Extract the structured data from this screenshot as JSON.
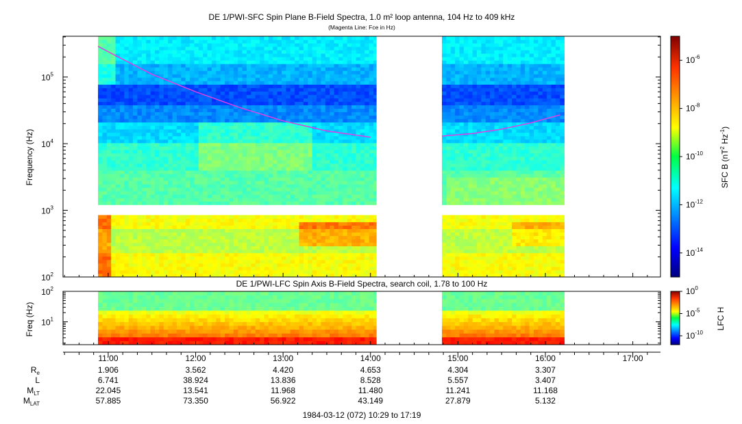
{
  "chart_data": [
    {
      "type": "heatmap",
      "title": "DE 1/PWI-SFC  Spin Plane B-Field Spectra, 1.0 m² loop antenna, 104 Hz to 409 kHz",
      "subtitle": "(Magenta Line: Fce in Hz)",
      "ylabel": "Frequency (Hz)",
      "yscale": "log",
      "ylim": [
        100,
        409000
      ],
      "yticks": [
        {
          "value": 100,
          "mant": "10",
          "exp": "2"
        },
        {
          "value": 1000,
          "mant": "10",
          "exp": "3"
        },
        {
          "value": 10000,
          "mant": "10",
          "exp": "4"
        },
        {
          "value": 100000,
          "mant": "10",
          "exp": "5"
        }
      ],
      "data_intervals": [
        [
          "10:53",
          "14:04"
        ],
        [
          "14:49",
          "16:13"
        ]
      ],
      "band_gap_hz": [
        950,
        1120
      ],
      "fce_series": {
        "name": "Fce",
        "color": "#e040e0",
        "segments": [
          {
            "t": [
              "10:53",
              "11:05",
              "11:30",
              "12:00",
              "12:30",
              "13:00",
              "13:30",
              "14:00"
            ],
            "f": [
              290000,
              210000,
              110000,
              60000,
              35000,
              22000,
              15500,
              12500
            ]
          },
          {
            "t": [
              "14:49",
              "15:10",
              "15:30",
              "15:50",
              "16:10"
            ],
            "f": [
              13000,
              14200,
              16500,
              20500,
              27000
            ]
          }
        ]
      },
      "colorbar": {
        "label_main": "SFC B (nT",
        "label_exp1": "2",
        "label_mid": " Hz",
        "label_exp2": "-1",
        "label_end": ")",
        "range_log10": [
          -15,
          -5
        ],
        "ticks": [
          {
            "value": -6,
            "mant": "10",
            "exp": "-6"
          },
          {
            "value": -8,
            "mant": "10",
            "exp": "-8"
          },
          {
            "value": -10,
            "mant": "10",
            "exp": "-10"
          },
          {
            "value": -12,
            "mant": "10",
            "exp": "-12"
          },
          {
            "value": -14,
            "mant": "10",
            "exp": "-14"
          }
        ]
      }
    },
    {
      "type": "heatmap",
      "title": "DE 1/PWI-LFC  Spin Axis B-Field Spectra, search coil, 1.78 to 100 Hz",
      "ylabel": "Freq (Hz)",
      "yscale": "log",
      "ylim": [
        1.78,
        100
      ],
      "yticks": [
        {
          "value": 10,
          "mant": "10",
          "exp": "1"
        },
        {
          "value": 100,
          "mant": "10",
          "exp": "2"
        }
      ],
      "data_intervals": [
        [
          "10:53",
          "14:04"
        ],
        [
          "14:49",
          "16:13"
        ]
      ],
      "colorbar": {
        "label": "LFC H",
        "range_log10": [
          -12,
          0
        ],
        "ticks": [
          {
            "value": 0,
            "mant": "10",
            "exp": "0"
          },
          {
            "value": -5,
            "mant": "10",
            "exp": "-5"
          },
          {
            "value": -10,
            "mant": "10",
            "exp": "-10"
          }
        ]
      }
    }
  ],
  "time_axis": {
    "start": "10:29",
    "end": "17:19",
    "major_ticks": [
      "11:00",
      "12:00",
      "13:00",
      "14:00",
      "15:00",
      "16:00",
      "17:00"
    ]
  },
  "ephemeris": {
    "rows": [
      {
        "label_main": "R",
        "label_sub": "e",
        "values": [
          "1.906",
          "3.562",
          "4.420",
          "4.653",
          "4.304",
          "3.307"
        ]
      },
      {
        "label_main": "L",
        "label_sub": "",
        "values": [
          "6.741",
          "38.924",
          "13.836",
          "8.528",
          "5.557",
          "3.407"
        ]
      },
      {
        "label_main": "M",
        "label_sub": "LT",
        "values": [
          "22.045",
          "13.541",
          "11.968",
          "11.480",
          "11.241",
          "11.168"
        ]
      },
      {
        "label_main": "M",
        "label_sub": "LAT",
        "values": [
          "57.885",
          "73.350",
          "56.922",
          "43.149",
          "27.879",
          "5.132"
        ]
      }
    ]
  },
  "footer": "1984-03-12 (072) 10:29 to 17:19"
}
